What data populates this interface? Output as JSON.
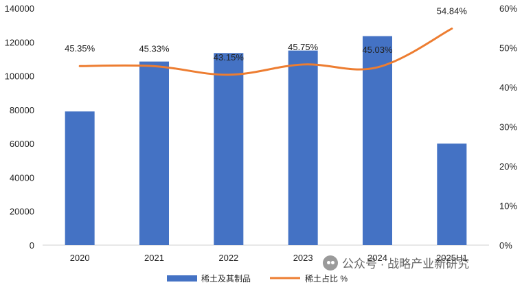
{
  "chart_data": {
    "type": "bar",
    "categories": [
      "2020",
      "2021",
      "2022",
      "2023",
      "2024",
      "2025H1"
    ],
    "series": [
      {
        "name": "稀土及其制品",
        "type": "bar",
        "axis": "left",
        "color": "#4472C4",
        "values": [
          79000,
          108500,
          113500,
          115000,
          123500,
          60000
        ]
      },
      {
        "name": "稀土占比 %",
        "type": "line",
        "axis": "right",
        "color": "#ED7D31",
        "values": [
          45.35,
          45.33,
          43.15,
          45.75,
          45.03,
          54.84
        ],
        "labels": [
          "45.35%",
          "45.33%",
          "43.15%",
          "45.75%",
          "45.03%",
          "54.84%"
        ]
      }
    ],
    "y_left": {
      "ylim": [
        0,
        140000
      ],
      "ticks": [
        "0",
        "20000",
        "40000",
        "60000",
        "80000",
        "100000",
        "120000",
        "140000"
      ]
    },
    "y_right": {
      "ylim": [
        0,
        60
      ],
      "ticks": [
        "0%",
        "10%",
        "20%",
        "30%",
        "40%",
        "50%",
        "60%"
      ]
    },
    "legend": {
      "position": "bottom",
      "entries": [
        "稀土及其制品",
        "稀土占比 %"
      ]
    },
    "grid": false
  },
  "watermark": {
    "text": "公众号 · 战略产业新研究"
  }
}
